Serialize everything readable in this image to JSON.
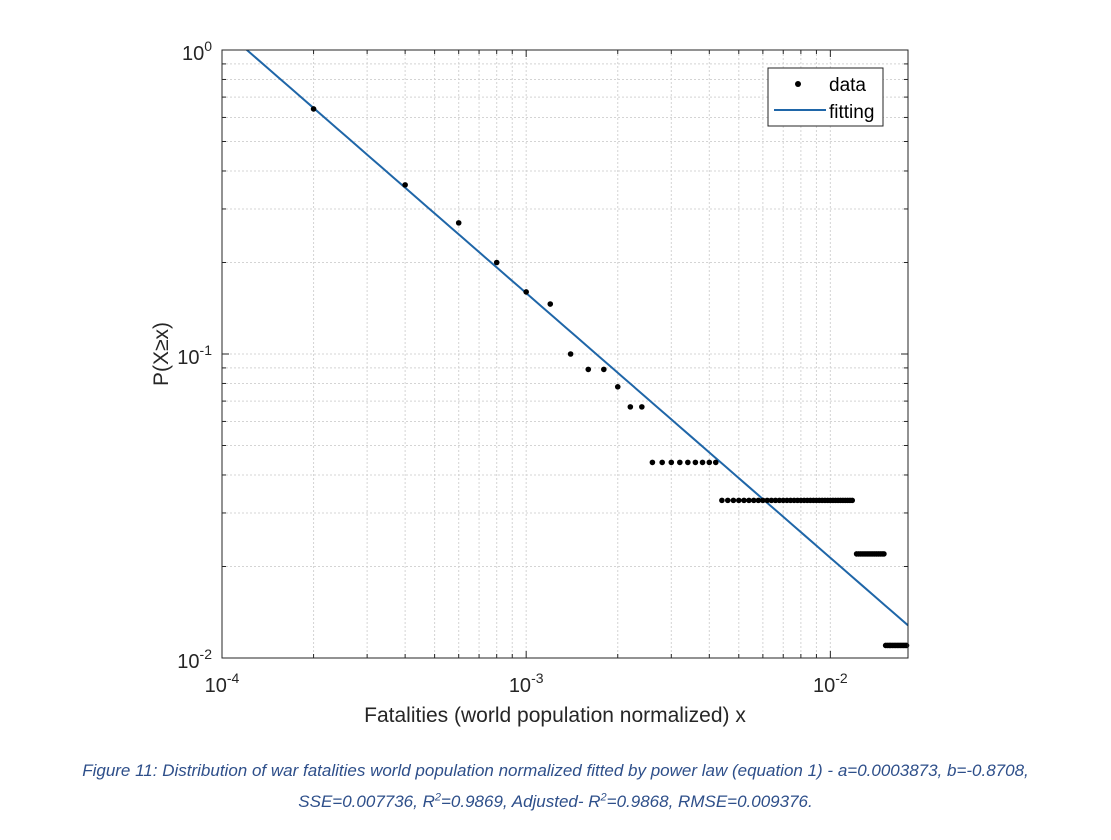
{
  "chart_data": {
    "type": "scatter",
    "xscale": "log",
    "yscale": "log",
    "xlim": [
      0.0001,
      0.018
    ],
    "ylim": [
      0.01,
      1
    ],
    "xlabel": "Fatalities (world population normalized) x",
    "ylabel": "P(X≥x)",
    "x_ticks": [
      {
        "base": "10",
        "exp": "-4",
        "value": 0.0001
      },
      {
        "base": "10",
        "exp": "-3",
        "value": 0.001
      },
      {
        "base": "10",
        "exp": "-2",
        "value": 0.01
      }
    ],
    "y_ticks": [
      {
        "base": "10",
        "exp": "0",
        "value": 1
      },
      {
        "base": "10",
        "exp": "-1",
        "value": 0.1
      },
      {
        "base": "10",
        "exp": "-2",
        "value": 0.01
      }
    ],
    "grid": true,
    "legend_position": "top-right",
    "series": [
      {
        "name": "data",
        "kind": "points",
        "color": "#000000",
        "x": [
          0.0002,
          0.0004,
          0.0006,
          0.0008,
          0.001,
          0.0012,
          0.0014,
          0.0016,
          0.0018,
          0.002,
          0.0022,
          0.0024,
          0.0026,
          0.0028,
          0.003,
          0.0032,
          0.0034,
          0.0036,
          0.0038,
          0.004,
          0.0042,
          0.0044,
          0.0046,
          0.0048,
          0.005,
          0.0052,
          0.0054,
          0.0056,
          0.0058,
          0.006,
          0.0062,
          0.0064,
          0.0066,
          0.0068,
          0.007,
          0.0072,
          0.0074,
          0.0076,
          0.0078,
          0.008,
          0.0082,
          0.0084,
          0.0086,
          0.0088,
          0.009,
          0.0092,
          0.0094,
          0.0096,
          0.0098,
          0.01,
          0.0102,
          0.0104,
          0.0106,
          0.0108,
          0.011,
          0.0112,
          0.0114,
          0.0116,
          0.0118,
          0.0122,
          0.0124,
          0.0126,
          0.0128,
          0.013,
          0.0132,
          0.0134,
          0.0136,
          0.0138,
          0.014,
          0.0142,
          0.0144,
          0.0146,
          0.0148,
          0.015,
          0.0152,
          0.0154,
          0.0156,
          0.0158,
          0.016,
          0.0162,
          0.0164,
          0.0166,
          0.0168,
          0.017,
          0.0172,
          0.0174,
          0.0176,
          0.0178
        ],
        "y": [
          0.64,
          0.36,
          0.27,
          0.2,
          0.16,
          0.146,
          0.1,
          0.089,
          0.089,
          0.078,
          0.067,
          0.067,
          0.044,
          0.044,
          0.044,
          0.044,
          0.044,
          0.044,
          0.044,
          0.044,
          0.044,
          0.033,
          0.033,
          0.033,
          0.033,
          0.033,
          0.033,
          0.033,
          0.033,
          0.033,
          0.033,
          0.033,
          0.033,
          0.033,
          0.033,
          0.033,
          0.033,
          0.033,
          0.033,
          0.033,
          0.033,
          0.033,
          0.033,
          0.033,
          0.033,
          0.033,
          0.033,
          0.033,
          0.033,
          0.033,
          0.033,
          0.033,
          0.033,
          0.033,
          0.033,
          0.033,
          0.033,
          0.033,
          0.033,
          0.022,
          0.022,
          0.022,
          0.022,
          0.022,
          0.022,
          0.022,
          0.022,
          0.022,
          0.022,
          0.022,
          0.022,
          0.022,
          0.022,
          0.022,
          0.011,
          0.011,
          0.011,
          0.011,
          0.011,
          0.011,
          0.011,
          0.011,
          0.011,
          0.011,
          0.011,
          0.011,
          0.011,
          0.011
        ]
      },
      {
        "name": "fitting",
        "kind": "line",
        "color": "#1f66a8",
        "equation": "y = a*x^b",
        "a": 0.0003873,
        "b": -0.8708
      }
    ]
  },
  "caption": {
    "line1": "Figure 11: Distribution of war fatalities world population normalized fitted by power law (equation 1) -  a=0.0003873, b=-0.8708,",
    "line2_a": "SSE=0.007736, R",
    "line2_sup1": "2",
    "line2_b": "=0.9869, Adjusted- R",
    "line2_sup2": "2",
    "line2_c": "=0.9868, RMSE=0.009376."
  }
}
